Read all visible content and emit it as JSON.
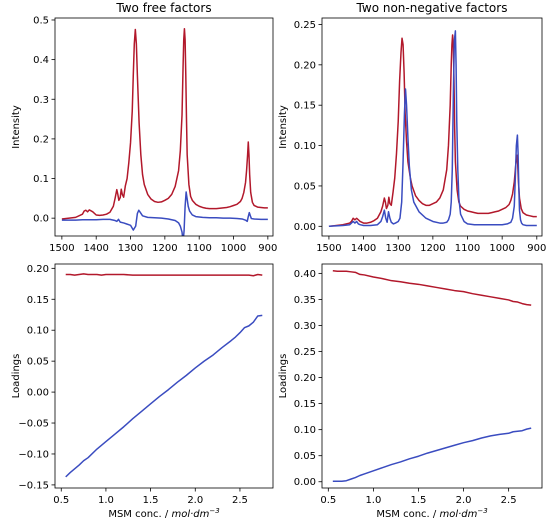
{
  "chart_data": [
    {
      "type": "line",
      "title": "Two free factors",
      "xlabel": "",
      "ylabel": "Intensity",
      "xlim": [
        1520,
        885
      ],
      "ylim": [
        -0.045,
        0.505
      ],
      "x_ticks": [
        1500,
        1400,
        1300,
        1200,
        1100,
        1000,
        900
      ],
      "y_ticks": [
        0.0,
        0.1,
        0.2,
        0.3,
        0.4,
        0.5
      ],
      "y_tick_labels": [
        "0.0",
        "0.1",
        "0.2",
        "0.3",
        "0.4",
        "0.5"
      ],
      "series": [
        {
          "color": "#b2182b",
          "x": [
            1500,
            1460,
            1440,
            1435,
            1430,
            1425,
            1420,
            1410,
            1400,
            1390,
            1380,
            1370,
            1360,
            1350,
            1345,
            1340,
            1337,
            1334,
            1330,
            1327,
            1324,
            1320,
            1315,
            1310,
            1305,
            1300,
            1295,
            1292,
            1289,
            1286,
            1283,
            1280,
            1275,
            1270,
            1265,
            1260,
            1250,
            1240,
            1230,
            1220,
            1210,
            1200,
            1190,
            1180,
            1170,
            1160,
            1155,
            1150,
            1147,
            1145,
            1143,
            1141,
            1139,
            1137,
            1135,
            1130,
            1125,
            1120,
            1110,
            1100,
            1090,
            1080,
            1070,
            1060,
            1050,
            1040,
            1030,
            1020,
            1010,
            1000,
            990,
            980,
            975,
            970,
            965,
            962,
            959,
            957,
            955,
            953,
            950,
            945,
            940,
            930,
            920,
            910,
            900
          ],
          "y": [
            -0.002,
            0.002,
            0.01,
            0.018,
            0.02,
            0.016,
            0.021,
            0.016,
            0.008,
            0.007,
            0.008,
            0.01,
            0.015,
            0.03,
            0.05,
            0.072,
            0.06,
            0.045,
            0.052,
            0.073,
            0.06,
            0.053,
            0.082,
            0.1,
            0.14,
            0.19,
            0.27,
            0.36,
            0.44,
            0.476,
            0.44,
            0.36,
            0.24,
            0.16,
            0.11,
            0.085,
            0.06,
            0.048,
            0.042,
            0.04,
            0.041,
            0.045,
            0.05,
            0.06,
            0.08,
            0.12,
            0.17,
            0.26,
            0.38,
            0.45,
            0.478,
            0.45,
            0.36,
            0.25,
            0.16,
            0.085,
            0.055,
            0.045,
            0.035,
            0.03,
            0.027,
            0.025,
            0.024,
            0.024,
            0.024,
            0.025,
            0.026,
            0.027,
            0.029,
            0.032,
            0.035,
            0.042,
            0.05,
            0.065,
            0.09,
            0.12,
            0.16,
            0.192,
            0.16,
            0.11,
            0.065,
            0.04,
            0.032,
            0.028,
            0.027,
            0.026,
            0.026
          ]
        },
        {
          "color": "#3a4cc0",
          "x": [
            1500,
            1460,
            1440,
            1420,
            1400,
            1380,
            1360,
            1345,
            1340,
            1335,
            1330,
            1320,
            1310,
            1300,
            1292,
            1285,
            1280,
            1276,
            1272,
            1265,
            1250,
            1230,
            1210,
            1190,
            1170,
            1160,
            1155,
            1150,
            1147,
            1144,
            1141,
            1138,
            1135,
            1132,
            1128,
            1120,
            1110,
            1090,
            1070,
            1050,
            1030,
            1010,
            990,
            975,
            965,
            960,
            957,
            954,
            951,
            948,
            940,
            920,
            900
          ],
          "y": [
            -0.005,
            -0.005,
            -0.004,
            -0.004,
            -0.004,
            -0.003,
            -0.003,
            -0.006,
            -0.008,
            -0.003,
            -0.01,
            -0.012,
            -0.015,
            -0.018,
            -0.03,
            -0.02,
            0.012,
            0.02,
            0.015,
            0.006,
            0.002,
            0.001,
            0.0,
            -0.002,
            -0.006,
            -0.012,
            -0.02,
            -0.035,
            -0.06,
            -0.032,
            0.03,
            0.066,
            0.048,
            0.03,
            0.018,
            0.008,
            0.004,
            0.002,
            0.001,
            0.001,
            0.0,
            0.0,
            -0.001,
            -0.002,
            -0.005,
            -0.008,
            0.004,
            0.014,
            0.006,
            -0.001,
            -0.002,
            -0.003,
            -0.003
          ]
        }
      ]
    },
    {
      "type": "line",
      "title": "Two non-negative factors",
      "xlabel": "",
      "ylabel": "Intensity",
      "xlim": [
        1520,
        885
      ],
      "ylim": [
        -0.012,
        0.258
      ],
      "x_ticks": [
        1500,
        1400,
        1300,
        1200,
        1100,
        1000,
        900
      ],
      "y_ticks": [
        0.0,
        0.05,
        0.1,
        0.15,
        0.2,
        0.25
      ],
      "y_tick_labels": [
        "0.00",
        "0.05",
        "0.10",
        "0.15",
        "0.20",
        "0.25"
      ],
      "series": [
        {
          "color": "#b2182b",
          "x": [
            1500,
            1460,
            1440,
            1435,
            1430,
            1425,
            1420,
            1410,
            1400,
            1390,
            1380,
            1370,
            1360,
            1350,
            1345,
            1340,
            1337,
            1334,
            1330,
            1327,
            1324,
            1320,
            1315,
            1310,
            1305,
            1300,
            1296,
            1292,
            1289,
            1286,
            1283,
            1280,
            1276,
            1272,
            1265,
            1260,
            1250,
            1240,
            1230,
            1220,
            1210,
            1200,
            1190,
            1180,
            1170,
            1160,
            1155,
            1150,
            1147,
            1145,
            1143,
            1141,
            1139,
            1137,
            1135,
            1130,
            1125,
            1120,
            1110,
            1100,
            1090,
            1080,
            1070,
            1060,
            1050,
            1040,
            1030,
            1020,
            1010,
            1000,
            990,
            980,
            975,
            970,
            965,
            962,
            959,
            957,
            955,
            953,
            950,
            945,
            940,
            930,
            920,
            910,
            900
          ],
          "y": [
            0.0,
            0.002,
            0.004,
            0.006,
            0.01,
            0.008,
            0.01,
            0.006,
            0.004,
            0.004,
            0.005,
            0.007,
            0.01,
            0.018,
            0.025,
            0.035,
            0.03,
            0.022,
            0.026,
            0.036,
            0.028,
            0.026,
            0.042,
            0.06,
            0.09,
            0.13,
            0.18,
            0.215,
            0.233,
            0.225,
            0.19,
            0.14,
            0.105,
            0.08,
            0.06,
            0.05,
            0.038,
            0.032,
            0.028,
            0.026,
            0.026,
            0.028,
            0.03,
            0.035,
            0.045,
            0.07,
            0.1,
            0.15,
            0.2,
            0.225,
            0.237,
            0.225,
            0.18,
            0.12,
            0.08,
            0.045,
            0.03,
            0.025,
            0.021,
            0.019,
            0.018,
            0.017,
            0.016,
            0.016,
            0.016,
            0.016,
            0.017,
            0.018,
            0.019,
            0.021,
            0.023,
            0.027,
            0.032,
            0.04,
            0.055,
            0.07,
            0.085,
            0.088,
            0.075,
            0.055,
            0.035,
            0.022,
            0.017,
            0.014,
            0.013,
            0.012,
            0.012
          ]
        },
        {
          "color": "#3a4cc0",
          "x": [
            1500,
            1460,
            1440,
            1430,
            1425,
            1420,
            1415,
            1410,
            1400,
            1380,
            1360,
            1350,
            1345,
            1340,
            1336,
            1332,
            1328,
            1324,
            1320,
            1314,
            1308,
            1300,
            1295,
            1290,
            1286,
            1282,
            1279,
            1276,
            1272,
            1268,
            1262,
            1255,
            1240,
            1220,
            1200,
            1180,
            1170,
            1160,
            1155,
            1150,
            1147,
            1144,
            1141,
            1138,
            1135,
            1133,
            1131,
            1128,
            1125,
            1120,
            1110,
            1100,
            1080,
            1060,
            1040,
            1020,
            1000,
            985,
            975,
            970,
            965,
            962,
            959,
            956,
            954,
            952,
            950,
            947,
            944,
            940,
            930,
            920,
            910,
            900
          ],
          "y": [
            0.0,
            0.001,
            0.002,
            0.006,
            0.004,
            0.006,
            0.003,
            0.002,
            0.001,
            0.001,
            0.002,
            0.006,
            0.012,
            0.02,
            0.01,
            0.005,
            0.018,
            0.01,
            0.005,
            0.003,
            0.004,
            0.006,
            0.01,
            0.03,
            0.08,
            0.14,
            0.17,
            0.15,
            0.11,
            0.075,
            0.045,
            0.03,
            0.018,
            0.01,
            0.006,
            0.004,
            0.004,
            0.005,
            0.008,
            0.015,
            0.03,
            0.07,
            0.16,
            0.23,
            0.242,
            0.2,
            0.13,
            0.07,
            0.035,
            0.015,
            0.006,
            0.003,
            0.002,
            0.002,
            0.002,
            0.002,
            0.002,
            0.003,
            0.005,
            0.01,
            0.025,
            0.06,
            0.1,
            0.113,
            0.09,
            0.05,
            0.02,
            0.008,
            0.004,
            0.002,
            0.001,
            0.001,
            0.001,
            0.001
          ]
        }
      ]
    },
    {
      "type": "line",
      "title": "",
      "xlabel": "MSM conc. / mol·dm⁻³",
      "ylabel": "Loadings",
      "xlim": [
        0.43,
        2.87
      ],
      "ylim": [
        -0.155,
        0.207
      ],
      "x_ticks": [
        0.5,
        1.0,
        1.5,
        2.0,
        2.5
      ],
      "x_tick_labels": [
        "0.5",
        "1.0",
        "1.5",
        "2.0",
        "2.5"
      ],
      "y_ticks": [
        -0.15,
        -0.1,
        -0.05,
        0.0,
        0.05,
        0.1,
        0.15,
        0.2
      ],
      "y_tick_labels": [
        "−0.15",
        "−0.10",
        "−0.05",
        "0.00",
        "0.05",
        "0.10",
        "0.15",
        "0.20"
      ],
      "series": [
        {
          "color": "#b2182b",
          "x": [
            0.55,
            0.6,
            0.65,
            0.7,
            0.75,
            0.8,
            0.85,
            0.9,
            0.95,
            1.0,
            1.1,
            1.2,
            1.3,
            1.4,
            1.5,
            1.6,
            1.7,
            1.8,
            1.9,
            2.0,
            2.1,
            2.2,
            2.3,
            2.4,
            2.5,
            2.6,
            2.65,
            2.7,
            2.75
          ],
          "y": [
            0.19,
            0.19,
            0.189,
            0.19,
            0.191,
            0.19,
            0.19,
            0.19,
            0.189,
            0.19,
            0.19,
            0.19,
            0.189,
            0.189,
            0.189,
            0.189,
            0.189,
            0.189,
            0.189,
            0.189,
            0.189,
            0.189,
            0.189,
            0.189,
            0.189,
            0.189,
            0.188,
            0.19,
            0.189
          ]
        },
        {
          "color": "#3a4cc0",
          "x": [
            0.55,
            0.6,
            0.65,
            0.7,
            0.75,
            0.8,
            0.9,
            1.0,
            1.1,
            1.2,
            1.3,
            1.4,
            1.5,
            1.6,
            1.7,
            1.8,
            1.9,
            2.0,
            2.1,
            2.2,
            2.3,
            2.4,
            2.45,
            2.5,
            2.55,
            2.6,
            2.65,
            2.7,
            2.75
          ],
          "y": [
            -0.137,
            -0.13,
            -0.124,
            -0.118,
            -0.111,
            -0.106,
            -0.092,
            -0.08,
            -0.068,
            -0.056,
            -0.043,
            -0.031,
            -0.019,
            -0.007,
            0.004,
            0.016,
            0.027,
            0.039,
            0.05,
            0.06,
            0.072,
            0.083,
            0.089,
            0.096,
            0.104,
            0.107,
            0.113,
            0.123,
            0.124
          ]
        }
      ]
    },
    {
      "type": "line",
      "title": "",
      "xlabel": "MSM conc. / mol·dm⁻³",
      "ylabel": "Loadings",
      "xlim": [
        0.43,
        2.87
      ],
      "ylim": [
        -0.012,
        0.418
      ],
      "x_ticks": [
        0.5,
        1.0,
        1.5,
        2.0,
        2.5
      ],
      "x_tick_labels": [
        "0.5",
        "1.0",
        "1.5",
        "2.0",
        "2.5"
      ],
      "y_ticks": [
        0.0,
        0.05,
        0.1,
        0.15,
        0.2,
        0.25,
        0.3,
        0.35,
        0.4
      ],
      "y_tick_labels": [
        "0.00",
        "0.05",
        "0.10",
        "0.15",
        "0.20",
        "0.25",
        "0.30",
        "0.35",
        "0.40"
      ],
      "series": [
        {
          "color": "#b2182b",
          "x": [
            0.55,
            0.6,
            0.65,
            0.7,
            0.75,
            0.8,
            0.85,
            0.9,
            1.0,
            1.1,
            1.2,
            1.3,
            1.4,
            1.5,
            1.6,
            1.7,
            1.8,
            1.9,
            2.0,
            2.1,
            2.2,
            2.3,
            2.4,
            2.5,
            2.55,
            2.6,
            2.65,
            2.7,
            2.75
          ],
          "y": [
            0.405,
            0.404,
            0.404,
            0.404,
            0.403,
            0.402,
            0.398,
            0.397,
            0.393,
            0.39,
            0.386,
            0.384,
            0.381,
            0.379,
            0.376,
            0.373,
            0.37,
            0.367,
            0.365,
            0.361,
            0.358,
            0.355,
            0.352,
            0.349,
            0.346,
            0.345,
            0.342,
            0.34,
            0.339
          ]
        },
        {
          "color": "#3a4cc0",
          "x": [
            0.55,
            0.6,
            0.65,
            0.7,
            0.75,
            0.8,
            0.85,
            0.9,
            1.0,
            1.1,
            1.2,
            1.3,
            1.4,
            1.5,
            1.6,
            1.7,
            1.8,
            1.9,
            2.0,
            2.1,
            2.2,
            2.3,
            2.4,
            2.5,
            2.55,
            2.6,
            2.65,
            2.7,
            2.75
          ],
          "y": [
            0.001,
            0.001,
            0.001,
            0.002,
            0.005,
            0.008,
            0.012,
            0.015,
            0.021,
            0.027,
            0.033,
            0.038,
            0.044,
            0.049,
            0.055,
            0.06,
            0.065,
            0.07,
            0.075,
            0.079,
            0.084,
            0.088,
            0.091,
            0.093,
            0.096,
            0.097,
            0.098,
            0.101,
            0.103
          ]
        }
      ]
    }
  ]
}
